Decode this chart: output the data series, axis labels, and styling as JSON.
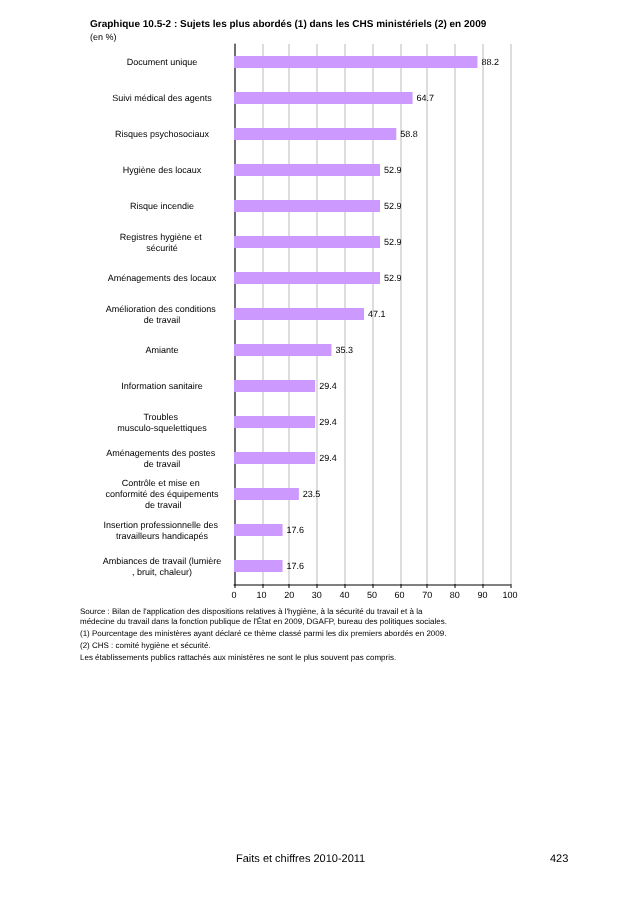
{
  "chart_data": {
    "type": "bar",
    "orientation": "horizontal",
    "title": "Graphique 10.5-2 : Sujets les plus abordés (1) dans les CHS ministériels (2) en 2009",
    "subtitle": "(en %)",
    "categories": [
      "Document unique",
      "Suivi médical des agents",
      "Risques psychosociaux",
      "Hygiène des locaux",
      "Risque incendie",
      "Registres hygiène et sécurité",
      "Aménagements des locaux",
      "Amélioration des conditions de travail",
      "Amiante",
      "Information sanitaire",
      "Troubles musculo-squelettiques",
      "Aménagements des postes de travail",
      "Contrôle et mise en conformité des équipements de travail",
      "Insertion professionnelle des travailleurs handicapés",
      "Ambiances de travail (lumière, bruit, chaleur)"
    ],
    "values": [
      88.2,
      64.7,
      58.8,
      52.9,
      52.9,
      52.9,
      52.9,
      47.1,
      35.3,
      29.4,
      29.4,
      29.4,
      23.5,
      17.6,
      17.6
    ],
    "color": "#cc99ff",
    "data_labels": true,
    "xlim": [
      0,
      100
    ],
    "xticks": [
      0,
      10,
      20,
      30,
      40,
      50,
      60,
      70,
      80,
      90,
      100
    ],
    "grid": "x",
    "annotations": [
      "Source : Bilan de l'application des dispositions relatives à l'hygiène, à la sécurité du travail et à la médecine du travail dans la fonction publique de l'État en 2009, DGAFP, bureau des politiques sociales.",
      "(1) Pourcentage des ministères ayant déclaré ce thème classé parmi les dix premiers abordés en 2009.",
      "(2) CHS : comité hygiène et sécurité.",
      "Les établissements publics rattachés aux ministères ne sont le plus souvent pas compris.",
      "Faits et chiffres 2010-2011",
      "423"
    ]
  }
}
